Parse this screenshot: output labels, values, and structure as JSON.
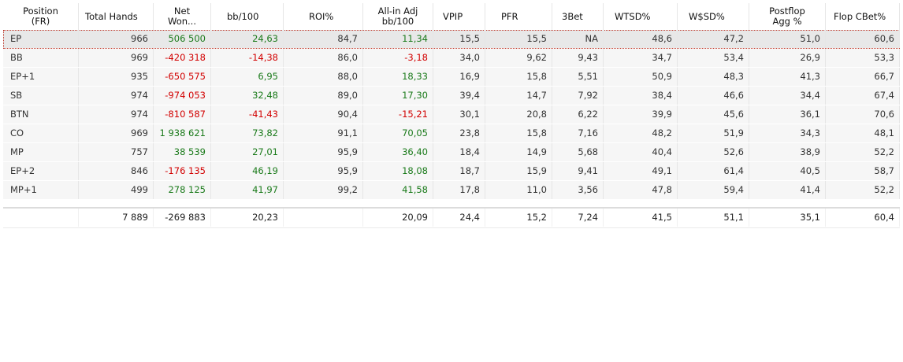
{
  "columns": [
    {
      "key": "pos",
      "label": "Position\n(FR)"
    },
    {
      "key": "hands",
      "label": "Total Hands"
    },
    {
      "key": "net",
      "label": "Net\nWon..."
    },
    {
      "key": "bb100",
      "label": "bb/100"
    },
    {
      "key": "roi",
      "label": "ROI%"
    },
    {
      "key": "allin",
      "label": "All-in Adj\nbb/100"
    },
    {
      "key": "vpip",
      "label": "VPIP"
    },
    {
      "key": "pfr",
      "label": "PFR"
    },
    {
      "key": "threebet",
      "label": "3Bet"
    },
    {
      "key": "wtsd",
      "label": "WTSD%"
    },
    {
      "key": "wsd",
      "label": "W$SD%"
    },
    {
      "key": "agg",
      "label": "Postflop\nAgg %"
    },
    {
      "key": "cbet",
      "label": "Flop CBet%"
    }
  ],
  "rows": [
    {
      "pos": "EP",
      "hands": "966",
      "net": "506 500",
      "bb100": "24,63",
      "roi": "84,7",
      "allin": "11,34",
      "vpip": "15,5",
      "pfr": "15,5",
      "threebet": "NA",
      "wtsd": "48,6",
      "wsd": "47,2",
      "agg": "51,0",
      "cbet": "60,6"
    },
    {
      "pos": "BB",
      "hands": "969",
      "net": "-420 318",
      "bb100": "-14,38",
      "roi": "86,0",
      "allin": "-3,18",
      "vpip": "34,0",
      "pfr": "9,62",
      "threebet": "9,43",
      "wtsd": "34,7",
      "wsd": "53,4",
      "agg": "26,9",
      "cbet": "53,3"
    },
    {
      "pos": "EP+1",
      "hands": "935",
      "net": "-650 575",
      "bb100": "6,95",
      "roi": "88,0",
      "allin": "18,33",
      "vpip": "16,9",
      "pfr": "15,8",
      "threebet": "5,51",
      "wtsd": "50,9",
      "wsd": "48,3",
      "agg": "41,3",
      "cbet": "66,7"
    },
    {
      "pos": "SB",
      "hands": "974",
      "net": "-974 053",
      "bb100": "32,48",
      "roi": "89,0",
      "allin": "17,30",
      "vpip": "39,4",
      "pfr": "14,7",
      "threebet": "7,92",
      "wtsd": "38,4",
      "wsd": "46,6",
      "agg": "34,4",
      "cbet": "67,4"
    },
    {
      "pos": "BTN",
      "hands": "974",
      "net": "-810 587",
      "bb100": "-41,43",
      "roi": "90,4",
      "allin": "-15,21",
      "vpip": "30,1",
      "pfr": "20,8",
      "threebet": "6,22",
      "wtsd": "39,9",
      "wsd": "45,6",
      "agg": "36,1",
      "cbet": "70,6"
    },
    {
      "pos": "CO",
      "hands": "969",
      "net": "1 938 621",
      "bb100": "73,82",
      "roi": "91,1",
      "allin": "70,05",
      "vpip": "23,8",
      "pfr": "15,8",
      "threebet": "7,16",
      "wtsd": "48,2",
      "wsd": "51,9",
      "agg": "34,3",
      "cbet": "48,1"
    },
    {
      "pos": "MP",
      "hands": "757",
      "net": "38 539",
      "bb100": "27,01",
      "roi": "95,9",
      "allin": "36,40",
      "vpip": "18,4",
      "pfr": "14,9",
      "threebet": "5,68",
      "wtsd": "40,4",
      "wsd": "52,6",
      "agg": "38,9",
      "cbet": "52,2"
    },
    {
      "pos": "EP+2",
      "hands": "846",
      "net": "-176 135",
      "bb100": "46,19",
      "roi": "95,9",
      "allin": "18,08",
      "vpip": "18,7",
      "pfr": "15,9",
      "threebet": "9,41",
      "wtsd": "49,1",
      "wsd": "61,4",
      "agg": "40,5",
      "cbet": "58,7"
    },
    {
      "pos": "MP+1",
      "hands": "499",
      "net": "278 125",
      "bb100": "41,97",
      "roi": "99,2",
      "allin": "41,58",
      "vpip": "17,8",
      "pfr": "11,0",
      "threebet": "3,56",
      "wtsd": "47,8",
      "wsd": "59,4",
      "agg": "41,4",
      "cbet": "52,2"
    }
  ],
  "totals": {
    "pos": "",
    "hands": "7 889",
    "net": "-269 883",
    "bb100": "20,23",
    "roi": "",
    "allin": "20,09",
    "vpip": "24,4",
    "pfr": "15,2",
    "threebet": "7,24",
    "wtsd": "41,5",
    "wsd": "51,1",
    "agg": "35,1",
    "cbet": "60,4"
  },
  "colors": {
    "positive": "#1a7a1a",
    "negative": "#d20000",
    "selected_outline": "#c0392b"
  }
}
